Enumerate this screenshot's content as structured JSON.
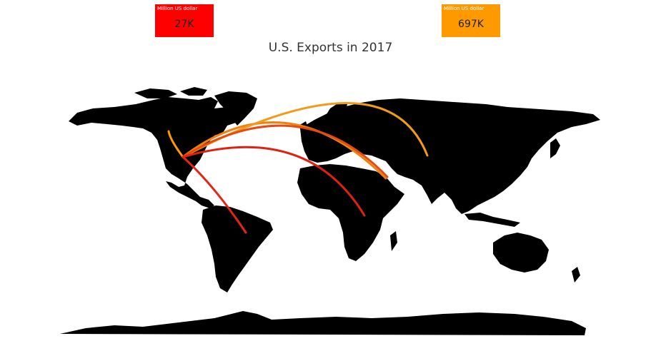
{
  "title": "U.S. Exports in 2017",
  "legend": {
    "min": {
      "caption": "Million US dollar",
      "value": "27K",
      "color": "#ff0000"
    },
    "max": {
      "caption": "Million US dollar",
      "value": "697K",
      "color": "#ff9900"
    }
  },
  "map": {
    "land_color": "#000000",
    "origin": "United States",
    "flows": [
      {
        "to": "Canada",
        "color": "#ff9900"
      },
      {
        "to": "Europe",
        "color": "#f08010"
      },
      {
        "to": "Russia / Asia",
        "color": "#f39a1a"
      },
      {
        "to": "Middle East",
        "color": "#e64a10"
      },
      {
        "to": "Africa",
        "color": "#e02010"
      },
      {
        "to": "South America",
        "color": "#e52515"
      }
    ]
  }
}
